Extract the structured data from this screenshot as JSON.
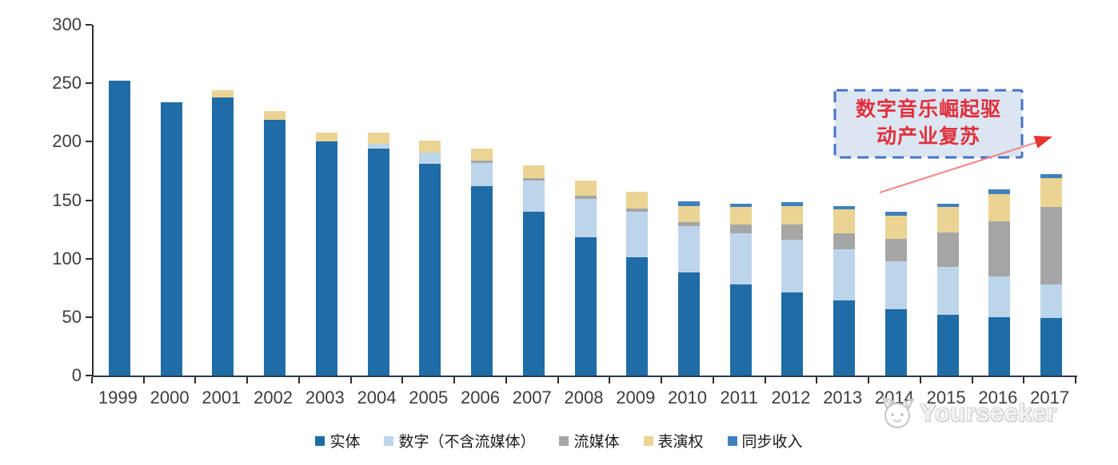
{
  "chart_data": {
    "type": "bar",
    "subtype": "stacked-vertical",
    "title": "",
    "xlabel": "",
    "ylabel": "",
    "categories": [
      "1999",
      "2000",
      "2001",
      "2002",
      "2003",
      "2004",
      "2005",
      "2006",
      "2007",
      "2008",
      "2009",
      "2010",
      "2011",
      "2012",
      "2013",
      "2014",
      "2015",
      "2016",
      "2017"
    ],
    "series": [
      {
        "name": "实体",
        "color": "#1f6ca6",
        "values": [
          252,
          234,
          238,
          219,
          200,
          194,
          181,
          162,
          140,
          118,
          101,
          88,
          78,
          71,
          64,
          57,
          52,
          50,
          49
        ]
      },
      {
        "name": "数字（不含流媒体）",
        "color": "#bdd5eb",
        "values": [
          0,
          0,
          0,
          0,
          0,
          4,
          10,
          20,
          27,
          33,
          39,
          40,
          44,
          45,
          44,
          41,
          41,
          35,
          29
        ]
      },
      {
        "name": "流媒体",
        "color": "#a6a6a6",
        "values": [
          0,
          0,
          0,
          0,
          0,
          0,
          0,
          2,
          2,
          3,
          3,
          3,
          7,
          13,
          14,
          19,
          29,
          47,
          66
        ]
      },
      {
        "name": "表演权",
        "color": "#ebd493",
        "values": [
          0,
          0,
          6,
          7,
          8,
          10,
          10,
          10,
          11,
          13,
          14,
          14,
          15,
          16,
          20,
          20,
          22,
          23,
          25
        ]
      },
      {
        "name": "同步收入",
        "color": "#3e81be",
        "values": [
          0,
          0,
          0,
          0,
          0,
          0,
          0,
          0,
          0,
          0,
          0,
          4,
          3,
          3,
          3,
          3,
          3,
          4,
          3
        ]
      }
    ],
    "ylim": [
      0,
      300
    ],
    "yticks": [
      0,
      50,
      100,
      150,
      200,
      250,
      300
    ],
    "grid": false,
    "legend_position": "bottom",
    "annotation": {
      "lines": [
        "数字音乐崛起驱",
        "动产业复苏"
      ],
      "text_color": "#e0303c",
      "box_fill": "#dbe6f2",
      "box_border": "#4472c4",
      "arrow_color": "#e63333"
    }
  },
  "watermark": {
    "text": "Yourseeker",
    "logo": "cat-face-icon"
  }
}
